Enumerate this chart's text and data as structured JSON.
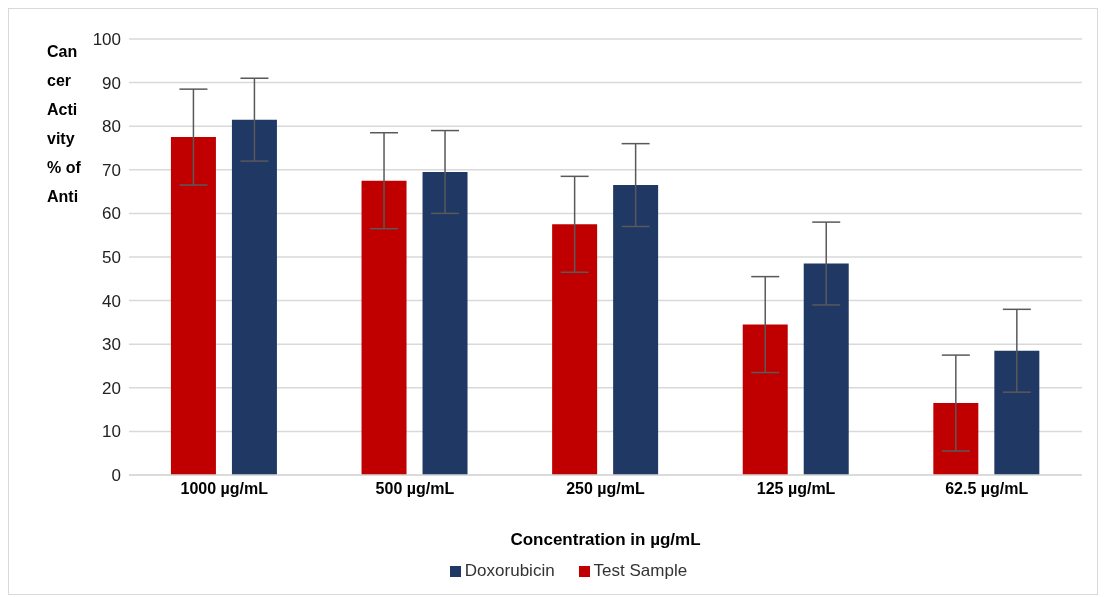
{
  "chart_data": {
    "type": "bar",
    "xlabel": "Concentration  in µg/mL",
    "ylabel": "Cancer Activity % of Anti",
    "categories": [
      "1000 µg/mL",
      "500 µg/mL",
      "250 µg/mL",
      "125 µg/mL",
      "62.5 µg/mL"
    ],
    "series": [
      {
        "name": "Test Sample",
        "color": "#c00000",
        "values": [
          77.5,
          67.5,
          57.5,
          34.5,
          16.5
        ],
        "errors": [
          11,
          11,
          11,
          11,
          11
        ]
      },
      {
        "name": "Doxorubicin",
        "color": "#203864",
        "values": [
          81.5,
          69.5,
          66.5,
          48.5,
          28.5
        ],
        "errors": [
          9.5,
          9.5,
          9.5,
          9.5,
          9.5
        ]
      }
    ],
    "ylim": [
      0,
      100
    ],
    "yticks": [
      0,
      10,
      20,
      30,
      40,
      50,
      60,
      70,
      80,
      90,
      100
    ],
    "grid": "y",
    "legend": "bottom"
  }
}
